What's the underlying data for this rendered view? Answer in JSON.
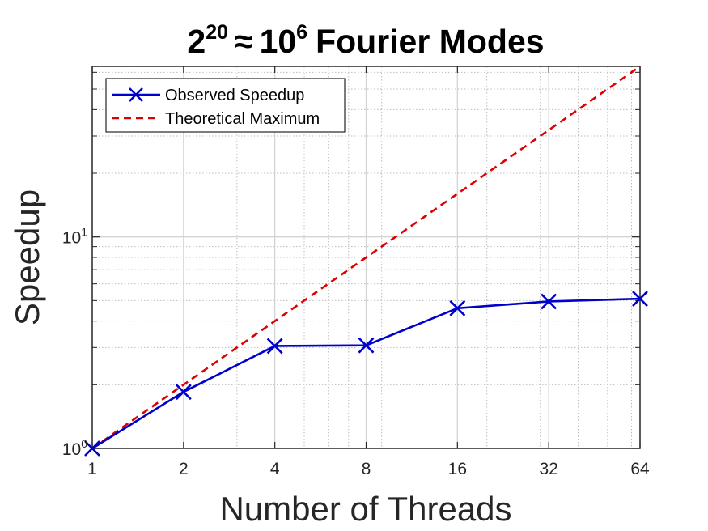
{
  "chart_data": {
    "type": "line",
    "title": {
      "base1": "2",
      "exp1": "20",
      "approx": "≈",
      "base2": "10",
      "exp2": "6",
      "rest": "Fourier Modes"
    },
    "xlabel": "Number of Threads",
    "ylabel": "Speedup",
    "x_scale": "log2",
    "y_scale": "log10",
    "xlim": [
      1,
      64
    ],
    "ylim": [
      1,
      64
    ],
    "xticks": [
      1,
      2,
      4,
      8,
      16,
      32,
      64
    ],
    "xtick_labels": [
      "1",
      "2",
      "4",
      "8",
      "16",
      "32",
      "64"
    ],
    "yticks": [
      {
        "value": 1,
        "base": "10",
        "exp": "0"
      },
      {
        "value": 10,
        "base": "10",
        "exp": "1"
      }
    ],
    "grid": true,
    "minor_grid": true,
    "legend_position": "top-left",
    "series": [
      {
        "name": "Observed Speedup",
        "color": "#0000cc",
        "line_style": "solid",
        "marker": "x",
        "x": [
          1,
          2,
          4,
          8,
          16,
          32,
          64
        ],
        "y": [
          1.0,
          1.85,
          3.05,
          3.07,
          4.6,
          4.95,
          5.1
        ]
      },
      {
        "name": "Theoretical Maximum",
        "color": "#dd0000",
        "line_style": "dashed",
        "marker": "none",
        "x": [
          1,
          2,
          4,
          8,
          16,
          32,
          64
        ],
        "y": [
          1,
          2,
          4,
          8,
          16,
          32,
          64
        ]
      }
    ]
  }
}
